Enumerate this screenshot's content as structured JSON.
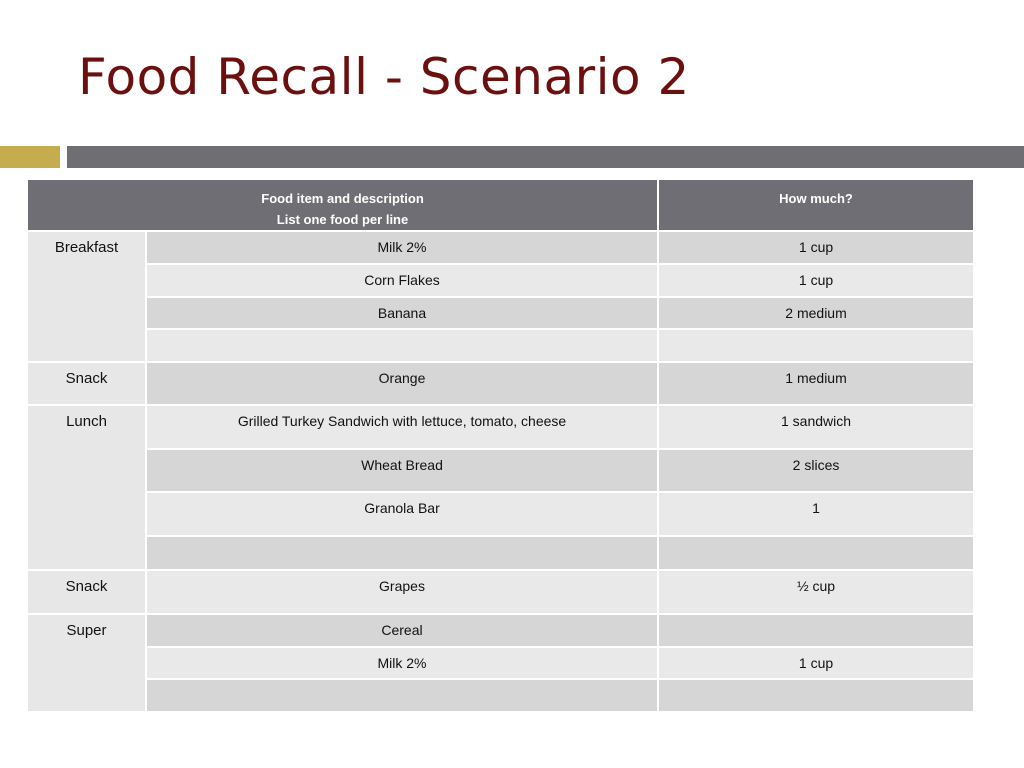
{
  "slide": {
    "title": "Food Recall - Scenario 2"
  },
  "table": {
    "header": {
      "food_line1": "Food item and description",
      "food_line2": "List one food per line",
      "amount": "How much?"
    },
    "meals": [
      {
        "name": "Breakfast",
        "rows": [
          {
            "food": "Milk 2%",
            "amount": "1 cup"
          },
          {
            "food": "Corn Flakes",
            "amount": "1 cup"
          },
          {
            "food": "Banana",
            "amount": "2 medium"
          },
          {
            "food": "",
            "amount": ""
          }
        ]
      },
      {
        "name": "Snack",
        "rows": [
          {
            "food": "Orange",
            "amount": "1 medium"
          }
        ]
      },
      {
        "name": "Lunch",
        "rows": [
          {
            "food": "Grilled Turkey Sandwich with lettuce, tomato, cheese",
            "amount": "1 sandwich"
          },
          {
            "food": "Wheat Bread",
            "amount": "2 slices"
          },
          {
            "food": "Granola Bar",
            "amount": "1"
          },
          {
            "food": "",
            "amount": ""
          }
        ]
      },
      {
        "name": "Snack",
        "rows": [
          {
            "food": "Grapes",
            "amount": "½ cup"
          }
        ]
      },
      {
        "name": "Super",
        "rows": [
          {
            "food": "Cereal",
            "amount": ""
          },
          {
            "food": "Milk 2%",
            "amount": "1 cup"
          },
          {
            "food": "",
            "amount": ""
          }
        ]
      }
    ]
  }
}
